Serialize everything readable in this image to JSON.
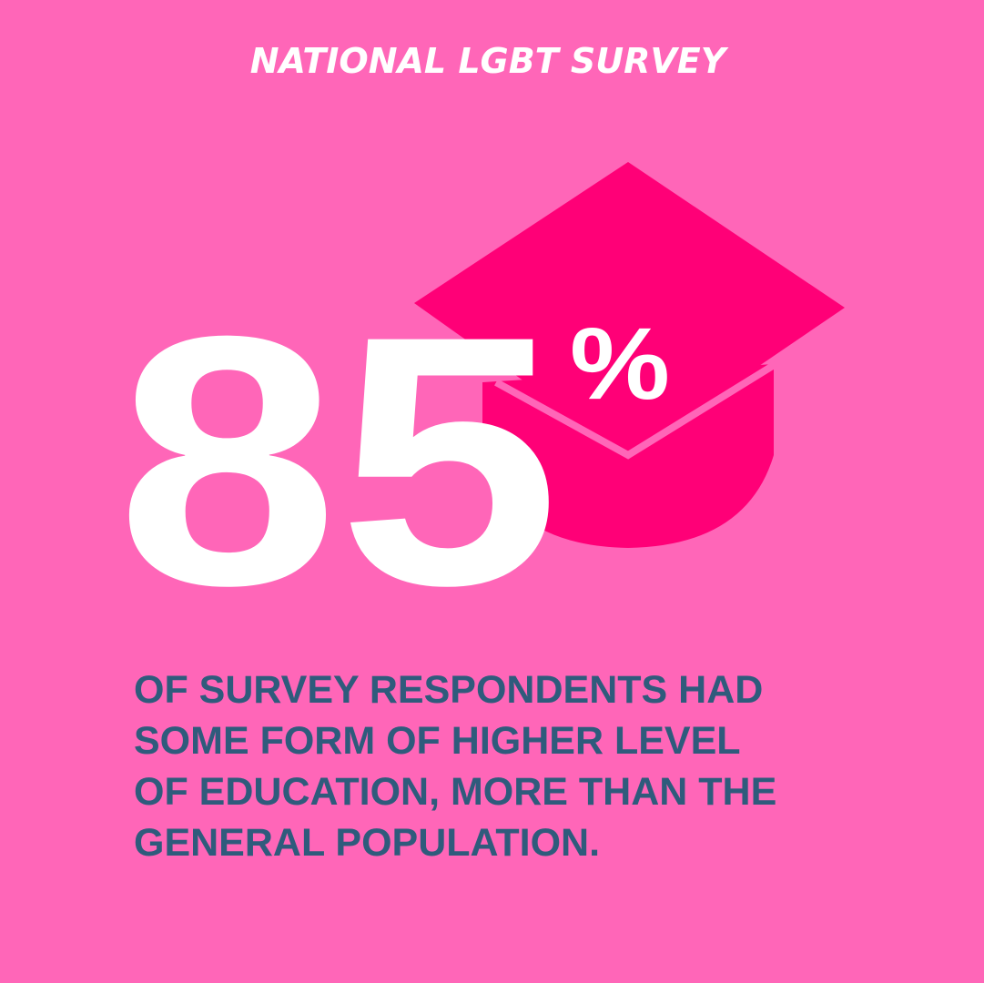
{
  "title": "NATIONAL LGBT SURVEY",
  "stat": {
    "value": "85",
    "unit": "%"
  },
  "description": [
    "OF SURVEY RESPONDENTS HAD",
    "SOME FORM OF HIGHER LEVEL",
    "OF EDUCATION, MORE THAN THE",
    "GENERAL POPULATION."
  ]
}
